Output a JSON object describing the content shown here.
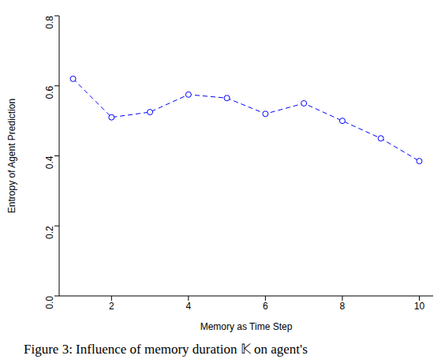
{
  "chart_data": {
    "type": "line",
    "x_label": "Memory as Time Step",
    "y_label": "Entropy of Agent Prediction",
    "annotations": [
      "Figure 3: Influence of memory duration 𝕂 on agent's"
    ],
    "x": [
      1,
      2,
      3,
      4,
      5,
      6,
      7,
      8,
      9,
      10
    ],
    "series": [
      {
        "name": "Entropy",
        "color": "#0000ff",
        "marker": "circle_open",
        "line_style": "dashed",
        "values": [
          0.62,
          0.51,
          0.525,
          0.575,
          0.565,
          0.52,
          0.55,
          0.5,
          0.45,
          0.385
        ]
      }
    ],
    "xlim": [
      0.64,
      10.36
    ],
    "xticks": [
      2,
      4,
      6,
      8,
      10
    ],
    "ylim": [
      0,
      0.8
    ],
    "yticks": [
      {
        "value": 0,
        "label": "0.0"
      },
      0.2,
      0.4,
      0.6,
      0.8
    ],
    "grid": false
  }
}
